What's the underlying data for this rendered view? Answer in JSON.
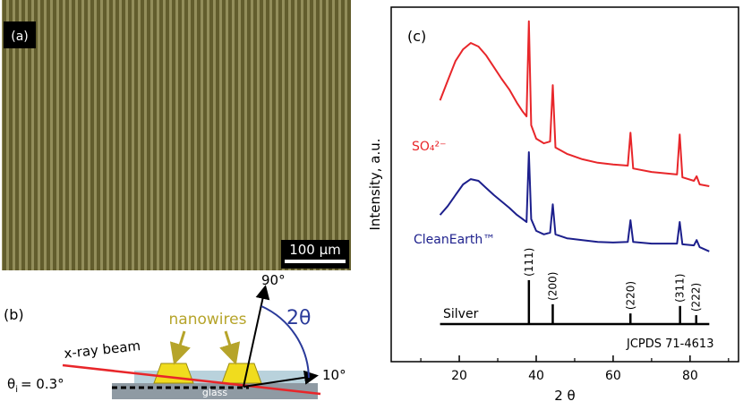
{
  "panel_a": {
    "label": "(a)",
    "scale_bar": "100 μm"
  },
  "panel_b": {
    "label": "(b)",
    "angle_90": "90°",
    "two_theta": "2θ",
    "nanowires": "nanowires",
    "beam": "x-ray beam",
    "incidence": {
      "symbol": "θ",
      "subscript": "i",
      "text": "= 0.3°"
    },
    "exit_angle": "10°",
    "substrate": "glass"
  },
  "chart_data": {
    "type": "line",
    "label": "(c)",
    "x_label": "2 θ",
    "y_label": "Intensity, a.u.",
    "xlim": [
      2.3,
      92.6
    ],
    "xticks": [
      20,
      40,
      60,
      80
    ],
    "xminor": [
      10,
      30,
      50,
      70,
      90
    ],
    "ylim": [
      0,
      100
    ],
    "x": [
      15,
      17,
      19,
      21,
      23,
      25,
      27,
      29,
      31,
      33,
      35,
      36.5,
      37.5,
      38.1,
      38.7,
      40,
      42,
      43.6,
      44.3,
      45,
      48,
      52,
      56,
      60,
      63.8,
      64.5,
      65.2,
      70,
      76.6,
      77.3,
      78,
      81,
      81.7,
      82.5,
      85
    ],
    "series": [
      {
        "name": "SO₄²⁻",
        "color": "#e8262a",
        "values": [
          73.7,
          79.3,
          84.8,
          88.1,
          89.9,
          88.9,
          86.4,
          83.1,
          79.8,
          76.8,
          73.0,
          70.5,
          69.2,
          96.0,
          66.7,
          62.9,
          61.6,
          62.1,
          78.0,
          60.4,
          58.6,
          57.1,
          56.1,
          55.6,
          55.3,
          64.6,
          54.5,
          53.5,
          52.8,
          64.1,
          52.0,
          51.0,
          52.3,
          50.0,
          49.5
        ]
      },
      {
        "name": "CleanEarth™",
        "color": "#1c1f8c",
        "values": [
          41.4,
          43.9,
          47.0,
          50.0,
          51.5,
          51.0,
          49.0,
          47.0,
          45.2,
          43.4,
          41.4,
          40.2,
          39.4,
          59.1,
          40.2,
          36.9,
          35.9,
          36.4,
          44.4,
          35.9,
          34.8,
          34.3,
          33.8,
          33.6,
          33.8,
          39.9,
          33.8,
          33.3,
          33.3,
          39.4,
          33.1,
          32.8,
          34.3,
          32.3,
          31.1
        ]
      }
    ],
    "reference": {
      "name": "Silver",
      "source": "JCPDS 71-4613",
      "baseline": 10.6,
      "range": [
        15,
        85
      ],
      "x": [
        38.1,
        44.3,
        64.5,
        77.4,
        81.6
      ],
      "values": [
        23.0,
        16.2,
        13.6,
        15.7,
        13.1
      ],
      "labels": [
        "(111)",
        "(200)",
        "(220)",
        "(311)",
        "(222)"
      ]
    }
  }
}
